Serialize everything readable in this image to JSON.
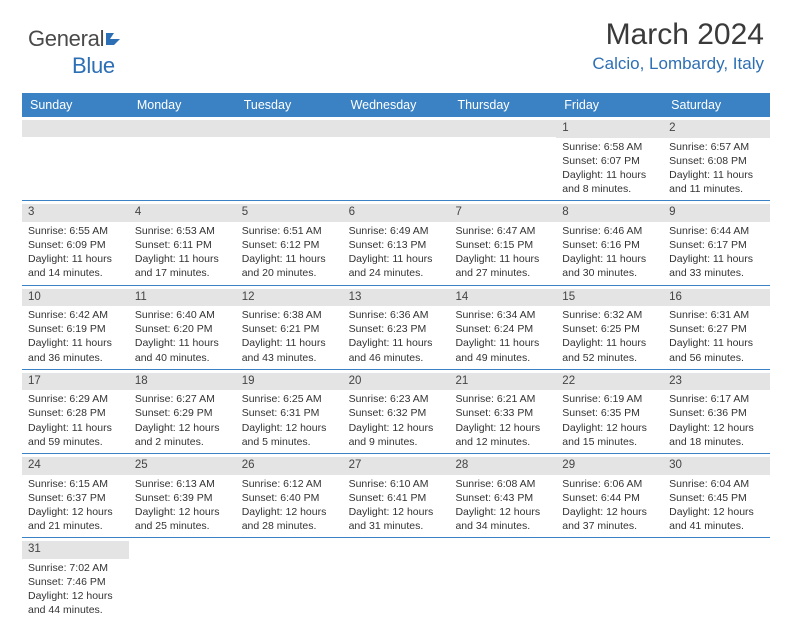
{
  "logo": {
    "text1": "General",
    "text2": "Blue"
  },
  "title": "March 2024",
  "location": "Calcio, Lombardy, Italy",
  "colors": {
    "header_bg": "#3a82c4",
    "header_text": "#ffffff",
    "accent": "#2d6fb5",
    "daynum_bg": "#e4e4e4",
    "border": "#3a82c4"
  },
  "dayNames": [
    "Sunday",
    "Monday",
    "Tuesday",
    "Wednesday",
    "Thursday",
    "Friday",
    "Saturday"
  ],
  "weeks": [
    [
      null,
      null,
      null,
      null,
      null,
      {
        "n": "1",
        "sr": "6:58 AM",
        "ss": "6:07 PM",
        "dl": "11 hours and 8 minutes."
      },
      {
        "n": "2",
        "sr": "6:57 AM",
        "ss": "6:08 PM",
        "dl": "11 hours and 11 minutes."
      }
    ],
    [
      {
        "n": "3",
        "sr": "6:55 AM",
        "ss": "6:09 PM",
        "dl": "11 hours and 14 minutes."
      },
      {
        "n": "4",
        "sr": "6:53 AM",
        "ss": "6:11 PM",
        "dl": "11 hours and 17 minutes."
      },
      {
        "n": "5",
        "sr": "6:51 AM",
        "ss": "6:12 PM",
        "dl": "11 hours and 20 minutes."
      },
      {
        "n": "6",
        "sr": "6:49 AM",
        "ss": "6:13 PM",
        "dl": "11 hours and 24 minutes."
      },
      {
        "n": "7",
        "sr": "6:47 AM",
        "ss": "6:15 PM",
        "dl": "11 hours and 27 minutes."
      },
      {
        "n": "8",
        "sr": "6:46 AM",
        "ss": "6:16 PM",
        "dl": "11 hours and 30 minutes."
      },
      {
        "n": "9",
        "sr": "6:44 AM",
        "ss": "6:17 PM",
        "dl": "11 hours and 33 minutes."
      }
    ],
    [
      {
        "n": "10",
        "sr": "6:42 AM",
        "ss": "6:19 PM",
        "dl": "11 hours and 36 minutes."
      },
      {
        "n": "11",
        "sr": "6:40 AM",
        "ss": "6:20 PM",
        "dl": "11 hours and 40 minutes."
      },
      {
        "n": "12",
        "sr": "6:38 AM",
        "ss": "6:21 PM",
        "dl": "11 hours and 43 minutes."
      },
      {
        "n": "13",
        "sr": "6:36 AM",
        "ss": "6:23 PM",
        "dl": "11 hours and 46 minutes."
      },
      {
        "n": "14",
        "sr": "6:34 AM",
        "ss": "6:24 PM",
        "dl": "11 hours and 49 minutes."
      },
      {
        "n": "15",
        "sr": "6:32 AM",
        "ss": "6:25 PM",
        "dl": "11 hours and 52 minutes."
      },
      {
        "n": "16",
        "sr": "6:31 AM",
        "ss": "6:27 PM",
        "dl": "11 hours and 56 minutes."
      }
    ],
    [
      {
        "n": "17",
        "sr": "6:29 AM",
        "ss": "6:28 PM",
        "dl": "11 hours and 59 minutes."
      },
      {
        "n": "18",
        "sr": "6:27 AM",
        "ss": "6:29 PM",
        "dl": "12 hours and 2 minutes."
      },
      {
        "n": "19",
        "sr": "6:25 AM",
        "ss": "6:31 PM",
        "dl": "12 hours and 5 minutes."
      },
      {
        "n": "20",
        "sr": "6:23 AM",
        "ss": "6:32 PM",
        "dl": "12 hours and 9 minutes."
      },
      {
        "n": "21",
        "sr": "6:21 AM",
        "ss": "6:33 PM",
        "dl": "12 hours and 12 minutes."
      },
      {
        "n": "22",
        "sr": "6:19 AM",
        "ss": "6:35 PM",
        "dl": "12 hours and 15 minutes."
      },
      {
        "n": "23",
        "sr": "6:17 AM",
        "ss": "6:36 PM",
        "dl": "12 hours and 18 minutes."
      }
    ],
    [
      {
        "n": "24",
        "sr": "6:15 AM",
        "ss": "6:37 PM",
        "dl": "12 hours and 21 minutes."
      },
      {
        "n": "25",
        "sr": "6:13 AM",
        "ss": "6:39 PM",
        "dl": "12 hours and 25 minutes."
      },
      {
        "n": "26",
        "sr": "6:12 AM",
        "ss": "6:40 PM",
        "dl": "12 hours and 28 minutes."
      },
      {
        "n": "27",
        "sr": "6:10 AM",
        "ss": "6:41 PM",
        "dl": "12 hours and 31 minutes."
      },
      {
        "n": "28",
        "sr": "6:08 AM",
        "ss": "6:43 PM",
        "dl": "12 hours and 34 minutes."
      },
      {
        "n": "29",
        "sr": "6:06 AM",
        "ss": "6:44 PM",
        "dl": "12 hours and 37 minutes."
      },
      {
        "n": "30",
        "sr": "6:04 AM",
        "ss": "6:45 PM",
        "dl": "12 hours and 41 minutes."
      }
    ],
    [
      {
        "n": "31",
        "sr": "7:02 AM",
        "ss": "7:46 PM",
        "dl": "12 hours and 44 minutes."
      },
      null,
      null,
      null,
      null,
      null,
      null
    ]
  ],
  "labels": {
    "sunrise": "Sunrise:",
    "sunset": "Sunset:",
    "daylight": "Daylight:"
  }
}
